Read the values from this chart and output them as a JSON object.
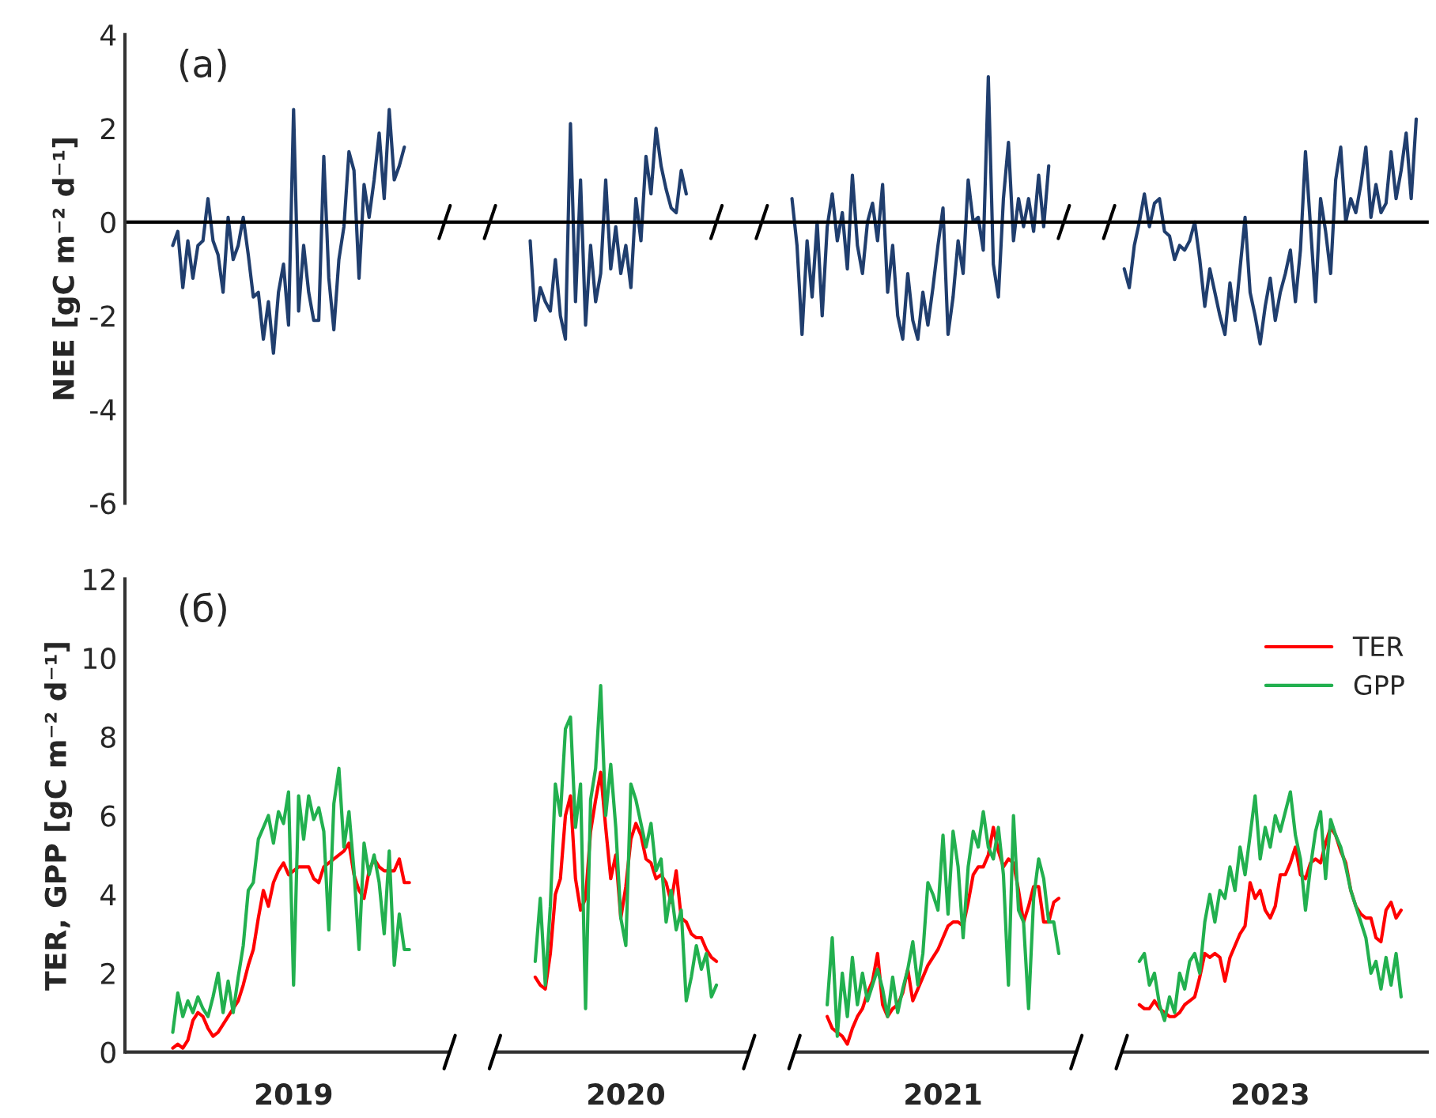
{
  "chart_data": [
    {
      "type": "line",
      "ylabel": "NEE [gC m⁻² d⁻¹]",
      "annotations": [
        "(a)"
      ],
      "ylim": [
        -6,
        4
      ],
      "yticks": [
        -6,
        -4,
        -2,
        0,
        2,
        4
      ],
      "tick_labels": "y",
      "grid": false,
      "legend": false,
      "line_style": "solid",
      "marker": "none",
      "ref_lines": [
        {
          "axis": "y",
          "value": 0,
          "color": "#000000"
        }
      ],
      "categories": [
        null,
        null,
        null,
        null,
        null,
        null,
        null,
        null,
        null,
        null,
        null,
        null,
        null,
        null,
        null,
        null,
        null,
        null,
        null,
        null,
        null,
        null,
        null,
        null,
        null,
        null,
        null,
        null,
        null,
        null,
        null,
        null,
        null,
        "2019",
        null,
        null,
        null,
        null,
        null,
        null,
        null,
        null,
        null,
        null,
        null,
        null,
        null,
        null,
        null,
        null,
        null,
        null,
        null,
        null,
        null,
        null,
        null,
        null,
        null,
        null,
        null,
        null,
        null,
        null,
        null,
        null,
        null,
        null,
        null,
        null,
        null,
        null,
        null,
        null,
        null,
        null,
        null,
        null,
        null,
        null,
        null,
        null,
        null,
        null,
        null,
        null,
        null,
        null,
        null,
        null,
        null,
        null,
        null,
        null,
        null,
        null,
        null,
        null,
        null,
        "2020",
        null,
        null,
        null,
        null,
        null,
        null,
        null,
        null,
        null,
        null,
        null,
        null,
        null,
        null,
        null,
        null,
        null,
        null,
        null,
        null,
        null,
        null,
        null,
        null,
        null,
        null,
        null,
        null,
        null,
        null,
        null,
        null,
        null,
        null,
        null,
        null,
        null,
        null,
        null,
        null,
        null,
        null,
        null,
        null,
        null,
        null,
        null,
        null,
        null,
        null,
        null,
        null,
        null,
        null,
        null,
        null,
        null,
        null,
        null,
        null,
        null,
        null,
        "2021",
        null,
        null,
        null,
        null,
        null,
        null,
        null,
        null,
        null,
        null,
        null,
        null,
        null,
        null,
        null,
        null,
        null,
        null,
        null,
        null,
        null,
        null,
        null,
        null,
        null,
        null,
        null,
        null,
        null,
        null,
        null,
        null,
        null,
        null,
        null,
        null,
        null,
        null,
        null,
        null,
        null,
        null,
        null,
        null,
        null,
        null,
        null,
        null,
        null,
        null,
        null,
        null,
        null,
        null,
        null,
        null,
        null,
        null,
        null,
        null,
        null,
        null,
        null,
        null,
        "2023",
        null,
        null,
        null,
        null,
        null,
        null,
        null,
        null,
        null,
        null,
        null,
        null,
        null,
        null,
        null,
        null,
        null,
        null,
        null,
        null,
        null,
        null,
        null,
        null,
        null,
        null,
        null,
        null,
        null,
        null,
        null
      ],
      "series": [
        {
          "color": "#203e6e",
          "values": [
            null,
            null,
            null,
            null,
            null,
            null,
            null,
            null,
            null,
            -0.5,
            -0.2,
            -1.4,
            -0.4,
            -1.2,
            -0.5,
            -0.4,
            0.5,
            -0.4,
            -0.7,
            -1.5,
            0.1,
            -0.8,
            -0.5,
            0.1,
            -0.7,
            -1.6,
            -1.5,
            -2.5,
            -1.7,
            -2.8,
            -1.5,
            -0.9,
            -2.2,
            2.4,
            -1.9,
            -0.5,
            -1.5,
            -2.1,
            -2.1,
            1.4,
            -1.2,
            -2.3,
            -0.8,
            -0.1,
            1.5,
            1.1,
            -1.2,
            0.8,
            0.1,
            0.9,
            1.9,
            0.5,
            2.4,
            0.9,
            1.2,
            1.6,
            null,
            null,
            null,
            null,
            null,
            null,
            null,
            null,
            null,
            null,
            null,
            null,
            null,
            null,
            null,
            null,
            null,
            null,
            null,
            null,
            null,
            null,
            null,
            null,
            -0.4,
            -2.1,
            -1.4,
            -1.7,
            -1.9,
            -0.8,
            -2.0,
            -2.5,
            2.1,
            -1.7,
            0.9,
            -2.2,
            -0.5,
            -1.7,
            -1.1,
            0.9,
            -1.0,
            -0.1,
            -1.1,
            -0.5,
            -1.4,
            0.5,
            -0.4,
            1.4,
            0.6,
            2.0,
            1.2,
            0.7,
            0.3,
            0.2,
            1.1,
            0.6,
            null,
            null,
            null,
            null,
            null,
            null,
            null,
            null,
            null,
            null,
            null,
            null,
            null,
            null,
            null,
            null,
            null,
            null,
            null,
            null,
            0.5,
            -0.5,
            -2.4,
            -0.4,
            -1.6,
            0.0,
            -2.0,
            -0.1,
            0.6,
            -0.4,
            0.2,
            -1.0,
            1.0,
            -0.5,
            -1.1,
            0.0,
            0.4,
            -0.4,
            0.8,
            -1.5,
            -0.5,
            -2.0,
            -2.5,
            -1.1,
            -2.1,
            -2.5,
            -1.5,
            -2.2,
            -1.4,
            -0.5,
            0.3,
            -2.4,
            -1.6,
            -0.4,
            -1.1,
            0.9,
            0.0,
            0.1,
            -0.6,
            3.1,
            -0.9,
            -1.6,
            0.5,
            1.7,
            -0.4,
            0.5,
            -0.1,
            0.5,
            -0.2,
            1.0,
            -0.1,
            1.2,
            null,
            null,
            null,
            null,
            null,
            null,
            null,
            null,
            null,
            null,
            null,
            null,
            null,
            null,
            -1.0,
            -1.4,
            -0.5,
            0.0,
            0.6,
            -0.1,
            0.4,
            0.5,
            -0.2,
            -0.3,
            -0.8,
            -0.5,
            -0.6,
            -0.4,
            0.0,
            -0.8,
            -1.8,
            -1.0,
            -1.5,
            -2.0,
            -2.4,
            -1.3,
            -2.1,
            -1.0,
            0.1,
            -1.5,
            -2.0,
            -2.6,
            -1.8,
            -1.2,
            -2.1,
            -1.5,
            -1.1,
            -0.6,
            -1.7,
            -0.6,
            1.5,
            -0.1,
            -1.7,
            0.5,
            -0.2,
            -1.1,
            0.9,
            1.6,
            0.0,
            0.5,
            0.2,
            0.8,
            1.6,
            0.1,
            0.8,
            0.2,
            0.4,
            1.5,
            0.5,
            1.1,
            1.9,
            0.5,
            2.2,
            null,
            null
          ]
        }
      ]
    },
    {
      "type": "line",
      "ylabel": "TER, GPP [gC m⁻² d⁻¹]",
      "annotations": [
        "(б)"
      ],
      "ylim": [
        0,
        12
      ],
      "yticks": [
        0,
        2,
        4,
        6,
        8,
        10,
        12
      ],
      "grid": false,
      "legend": "top right",
      "line_style": "solid",
      "marker": "none",
      "categories": [
        null,
        null,
        null,
        null,
        null,
        null,
        null,
        null,
        null,
        null,
        null,
        null,
        null,
        null,
        null,
        null,
        null,
        null,
        null,
        null,
        null,
        null,
        null,
        null,
        null,
        null,
        null,
        null,
        null,
        null,
        null,
        null,
        null,
        "2019",
        null,
        null,
        null,
        null,
        null,
        null,
        null,
        null,
        null,
        null,
        null,
        null,
        null,
        null,
        null,
        null,
        null,
        null,
        null,
        null,
        null,
        null,
        null,
        null,
        null,
        null,
        null,
        null,
        null,
        null,
        null,
        null,
        null,
        null,
        null,
        null,
        null,
        null,
        null,
        null,
        null,
        null,
        null,
        null,
        null,
        null,
        null,
        null,
        null,
        null,
        null,
        null,
        null,
        null,
        null,
        null,
        null,
        null,
        null,
        null,
        null,
        null,
        null,
        null,
        null,
        "2020",
        null,
        null,
        null,
        null,
        null,
        null,
        null,
        null,
        null,
        null,
        null,
        null,
        null,
        null,
        null,
        null,
        null,
        null,
        null,
        null,
        null,
        null,
        null,
        null,
        null,
        null,
        null,
        null,
        null,
        null,
        null,
        null,
        null,
        null,
        null,
        null,
        null,
        null,
        null,
        null,
        null,
        null,
        null,
        null,
        null,
        null,
        null,
        null,
        null,
        null,
        null,
        null,
        null,
        null,
        null,
        null,
        null,
        null,
        null,
        null,
        null,
        null,
        "2021",
        null,
        null,
        null,
        null,
        null,
        null,
        null,
        null,
        null,
        null,
        null,
        null,
        null,
        null,
        null,
        null,
        null,
        null,
        null,
        null,
        null,
        null,
        null,
        null,
        null,
        null,
        null,
        null,
        null,
        null,
        null,
        null,
        null,
        null,
        null,
        null,
        null,
        null,
        null,
        null,
        null,
        null,
        null,
        null,
        null,
        null,
        null,
        null,
        null,
        null,
        null,
        null,
        null,
        null,
        null,
        null,
        null,
        null,
        null,
        null,
        null,
        null,
        null,
        null,
        "2023",
        null,
        null,
        null,
        null,
        null,
        null,
        null,
        null,
        null,
        null,
        null,
        null,
        null,
        null,
        null,
        null,
        null,
        null,
        null,
        null,
        null,
        null,
        null,
        null,
        null,
        null,
        null,
        null,
        null,
        null,
        null
      ],
      "series": [
        {
          "name": "TER",
          "color": "#ff0000",
          "values": [
            null,
            null,
            null,
            null,
            null,
            null,
            null,
            null,
            null,
            0.1,
            0.2,
            0.1,
            0.3,
            0.8,
            1.0,
            0.9,
            0.6,
            0.4,
            0.5,
            0.7,
            0.9,
            1.1,
            1.3,
            1.7,
            2.2,
            2.6,
            3.4,
            4.1,
            3.7,
            4.3,
            4.6,
            4.8,
            4.5,
            4.6,
            4.7,
            4.7,
            4.7,
            4.4,
            4.3,
            4.7,
            4.8,
            4.9,
            5.0,
            5.1,
            5.3,
            4.5,
            4.1,
            3.9,
            4.6,
            4.9,
            4.7,
            4.6,
            4.6,
            4.6,
            4.9,
            4.3,
            4.3,
            null,
            null,
            null,
            null,
            null,
            null,
            null,
            null,
            null,
            null,
            null,
            null,
            null,
            null,
            null,
            null,
            null,
            null,
            null,
            null,
            null,
            null,
            null,
            null,
            1.9,
            1.7,
            1.6,
            2.5,
            4.0,
            4.4,
            6.0,
            6.5,
            4.4,
            3.6,
            3.9,
            5.6,
            6.4,
            7.1,
            5.7,
            4.4,
            5.0,
            3.4,
            4.2,
            5.4,
            5.8,
            5.5,
            4.9,
            4.8,
            4.4,
            4.5,
            4.3,
            3.8,
            4.6,
            3.4,
            3.3,
            3.0,
            2.9,
            2.9,
            2.6,
            2.4,
            2.3,
            null,
            null,
            null,
            null,
            null,
            null,
            null,
            null,
            null,
            null,
            null,
            null,
            null,
            null,
            null,
            null,
            null,
            null,
            null,
            null,
            null,
            0.9,
            0.6,
            0.5,
            0.4,
            0.2,
            0.6,
            0.9,
            1.1,
            1.5,
            1.8,
            2.5,
            1.2,
            0.9,
            1.1,
            1.2,
            1.5,
            2.1,
            1.3,
            1.6,
            1.9,
            2.2,
            2.4,
            2.6,
            2.9,
            3.2,
            3.3,
            3.3,
            3.2,
            3.8,
            4.5,
            4.7,
            4.7,
            5.0,
            5.7,
            5.1,
            4.7,
            4.9,
            4.8,
            4.1,
            3.3,
            3.7,
            4.2,
            4.2,
            3.3,
            3.3,
            3.8,
            3.9,
            null,
            null,
            null,
            null,
            null,
            null,
            null,
            null,
            null,
            null,
            null,
            null,
            null,
            null,
            null,
            1.2,
            1.1,
            1.1,
            1.3,
            1.1,
            1.0,
            0.9,
            0.9,
            1.0,
            1.2,
            1.3,
            1.4,
            1.9,
            2.5,
            2.4,
            2.5,
            2.4,
            1.8,
            2.4,
            2.7,
            3.0,
            3.2,
            4.3,
            3.9,
            4.1,
            3.6,
            3.4,
            3.7,
            4.5,
            4.5,
            4.8,
            5.2,
            4.5,
            4.4,
            4.8,
            4.9,
            4.8,
            5.3,
            5.7,
            5.5,
            5.1,
            4.8,
            4.1,
            3.7,
            3.5,
            3.4,
            3.4,
            2.9,
            2.8,
            3.6,
            3.8,
            3.4,
            3.6,
            null,
            null,
            null,
            null,
            null
          ]
        },
        {
          "name": "GPP",
          "color": "#22b04f",
          "values": [
            null,
            null,
            null,
            null,
            null,
            null,
            null,
            null,
            null,
            0.5,
            1.5,
            0.9,
            1.3,
            1.0,
            1.4,
            1.1,
            0.9,
            1.4,
            2.0,
            1.0,
            1.8,
            1.0,
            1.9,
            2.7,
            4.1,
            4.3,
            5.4,
            5.7,
            6.0,
            5.3,
            6.1,
            5.8,
            6.6,
            1.7,
            6.5,
            5.4,
            6.5,
            5.9,
            6.2,
            5.6,
            3.1,
            6.3,
            7.2,
            5.2,
            6.1,
            4.6,
            2.6,
            5.3,
            4.5,
            5.0,
            4.3,
            3.0,
            5.1,
            2.2,
            3.5,
            2.6,
            2.6,
            null,
            null,
            null,
            null,
            null,
            null,
            null,
            null,
            null,
            null,
            null,
            null,
            null,
            null,
            null,
            null,
            null,
            null,
            null,
            null,
            null,
            null,
            null,
            null,
            2.3,
            3.9,
            1.7,
            3.7,
            6.8,
            6.0,
            8.2,
            8.5,
            5.7,
            6.8,
            1.1,
            6.4,
            7.2,
            9.3,
            6.0,
            7.3,
            5.7,
            3.4,
            2.7,
            6.8,
            6.4,
            5.8,
            5.2,
            5.8,
            4.6,
            4.9,
            3.3,
            4.1,
            3.1,
            3.6,
            1.3,
            1.9,
            2.7,
            2.1,
            2.5,
            1.4,
            1.7,
            null,
            null,
            null,
            null,
            null,
            null,
            null,
            null,
            null,
            null,
            null,
            null,
            null,
            null,
            null,
            null,
            null,
            null,
            null,
            null,
            null,
            1.2,
            2.9,
            0.4,
            2.0,
            0.9,
            2.4,
            1.2,
            2.0,
            1.3,
            1.7,
            2.1,
            1.6,
            0.9,
            1.9,
            1.0,
            1.6,
            2.1,
            2.8,
            1.7,
            2.5,
            4.3,
            4.0,
            3.6,
            5.5,
            3.5,
            5.6,
            4.7,
            2.9,
            4.7,
            5.6,
            5.2,
            6.1,
            5.2,
            4.9,
            5.7,
            4.5,
            1.7,
            6.0,
            3.6,
            3.3,
            1.1,
            3.9,
            4.9,
            4.4,
            3.3,
            3.3,
            2.5,
            null,
            null,
            null,
            null,
            null,
            null,
            null,
            null,
            null,
            null,
            null,
            null,
            null,
            null,
            null,
            2.3,
            2.5,
            1.7,
            2.0,
            1.2,
            0.8,
            1.4,
            1.0,
            2.0,
            1.6,
            2.3,
            2.5,
            2.0,
            3.3,
            4.0,
            3.3,
            4.1,
            3.9,
            4.7,
            4.1,
            5.2,
            4.5,
            5.5,
            6.5,
            4.9,
            5.7,
            5.2,
            6.0,
            5.6,
            6.1,
            6.6,
            5.5,
            4.9,
            3.6,
            4.7,
            5.6,
            6.1,
            4.4,
            5.9,
            5.5,
            5.2,
            4.7,
            4.1,
            3.7,
            3.3,
            2.9,
            2.0,
            2.3,
            1.6,
            2.4,
            1.7,
            2.5,
            1.4,
            null,
            null,
            null,
            null,
            null
          ]
        }
      ]
    }
  ]
}
